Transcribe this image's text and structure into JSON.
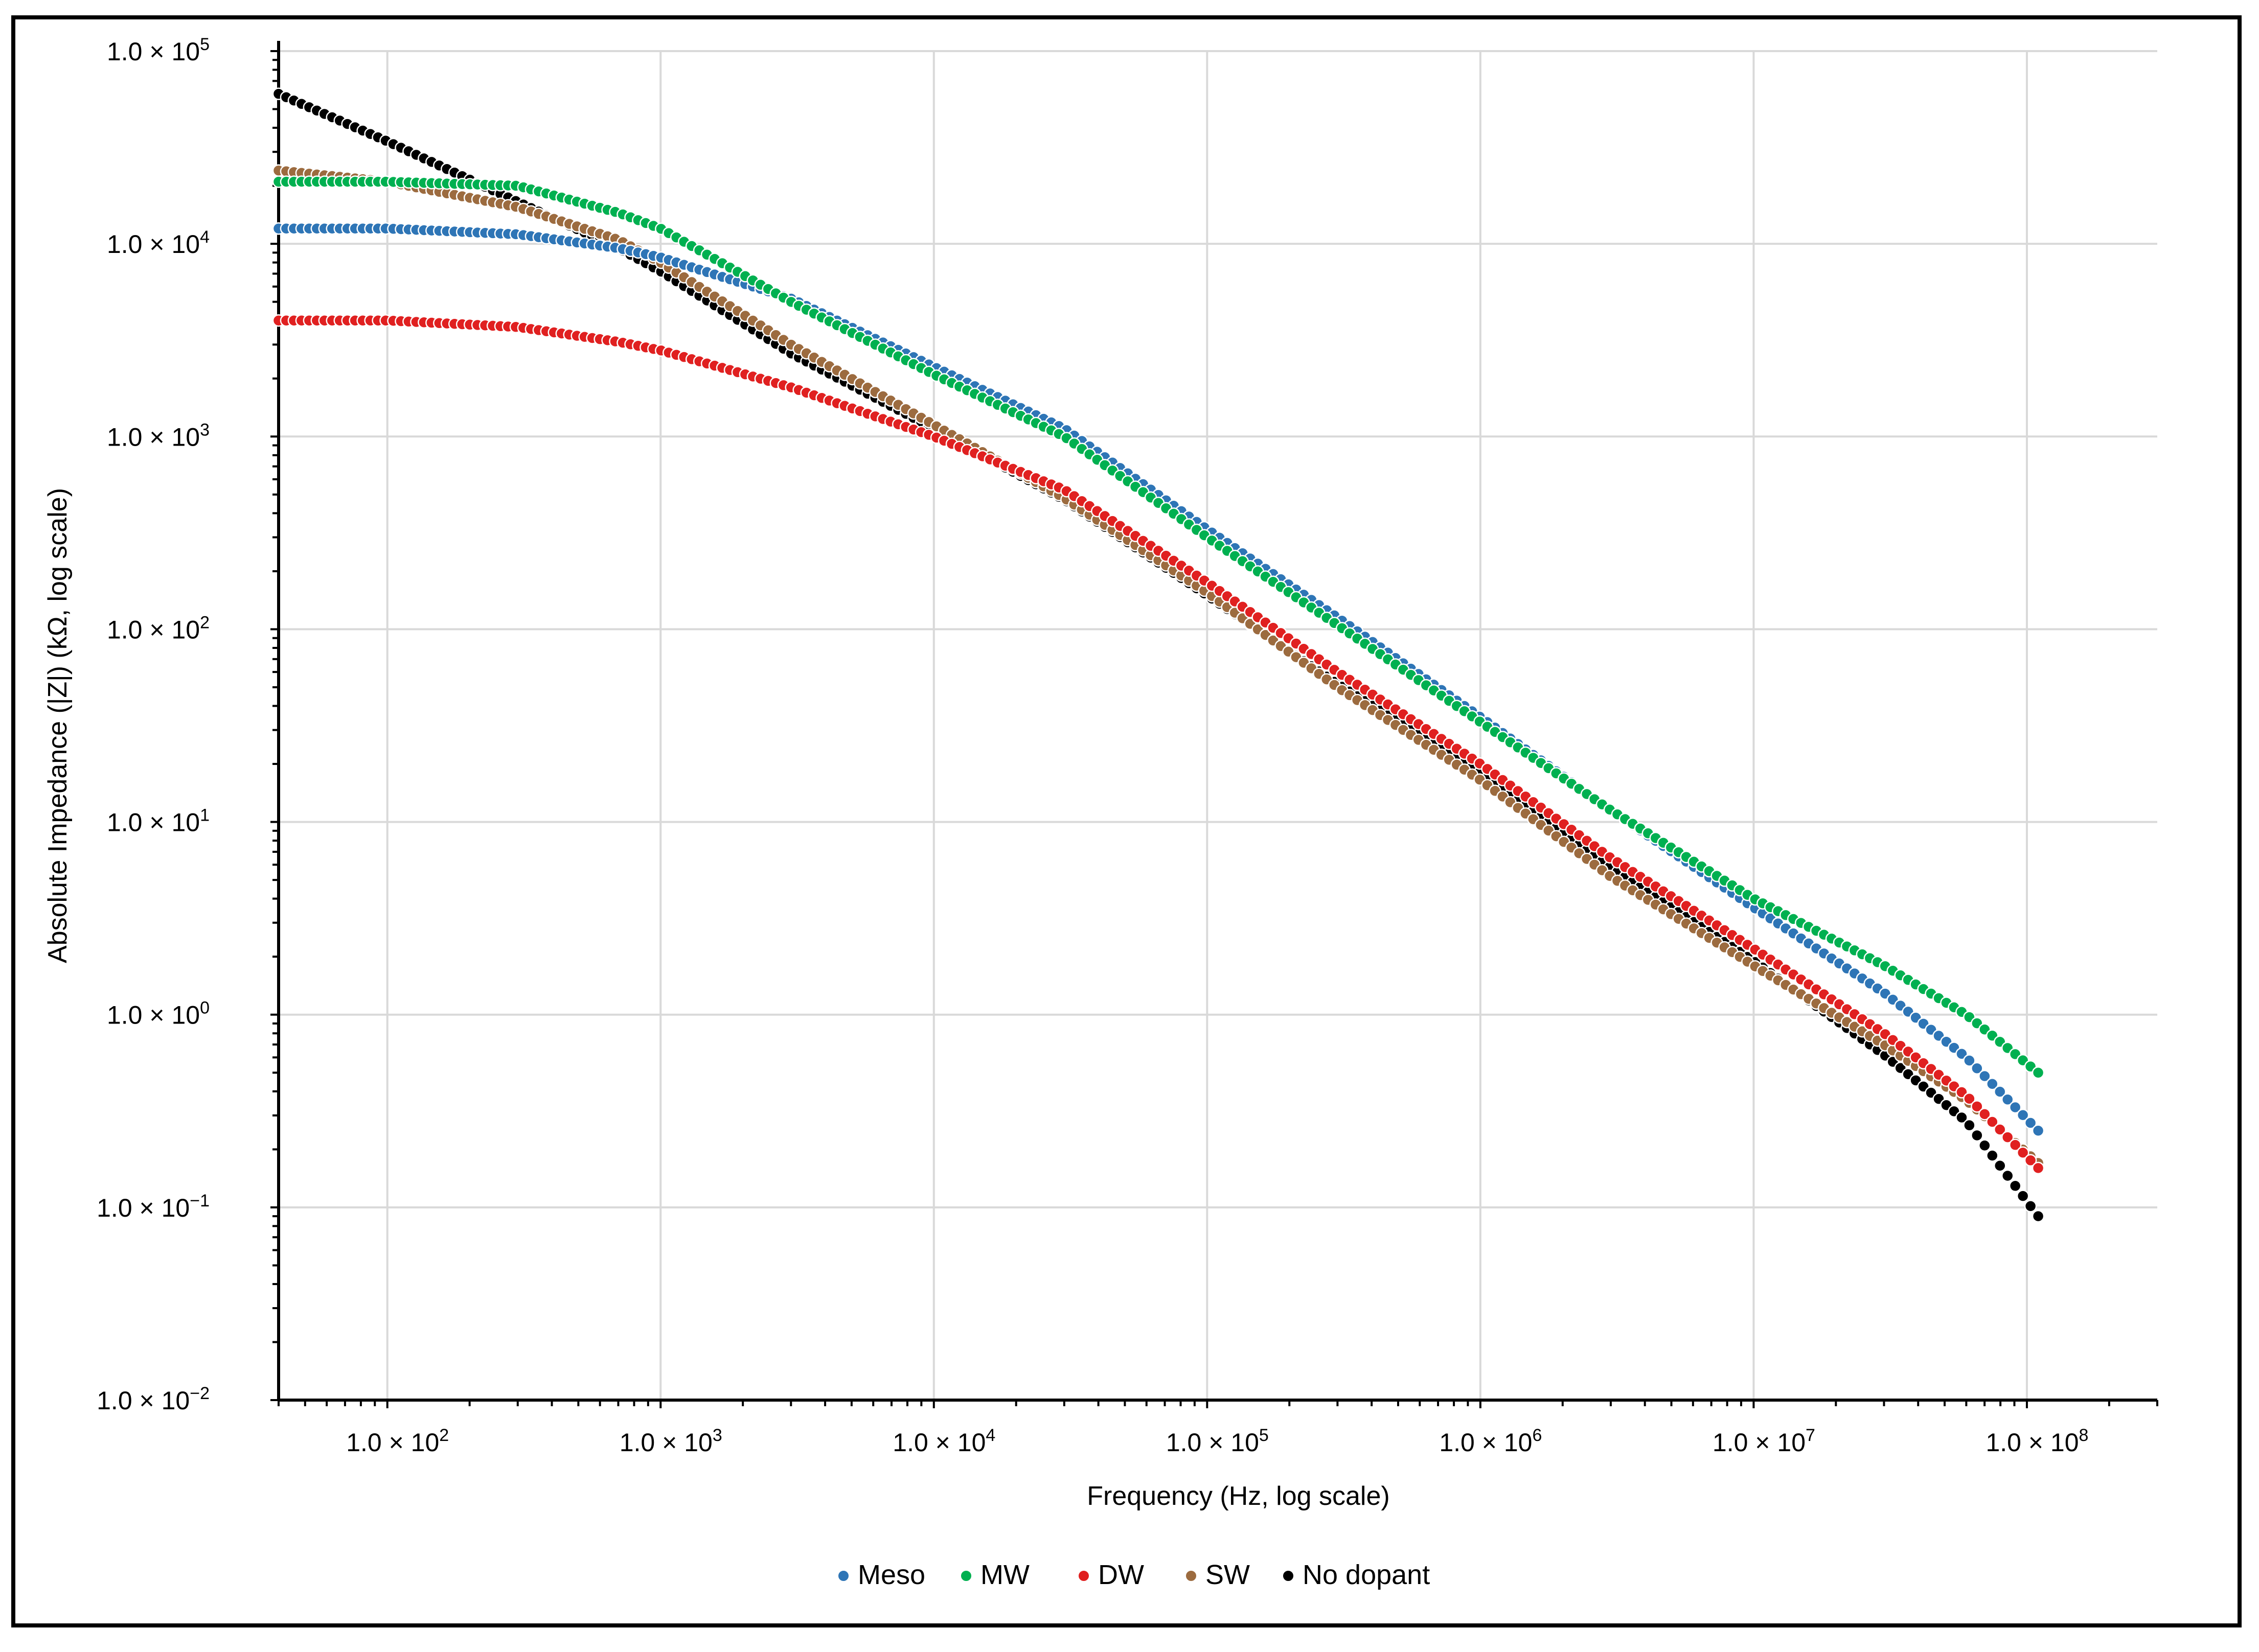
{
  "chart_data": {
    "type": "scatter",
    "xlabel": "Frequency (Hz, log scale)",
    "ylabel": "Absolute Impedance (|Z|) (kΩ, log scale)",
    "x_scale": "log",
    "y_scale": "log",
    "xlim": [
      40,
      300000000
    ],
    "ylim": [
      0.01,
      100000
    ],
    "grid": true,
    "legend_position": "bottom",
    "x_ticks": [
      {
        "value": 100,
        "mantissa": "1.0 × 10",
        "exp": "2"
      },
      {
        "value": 1000,
        "mantissa": "1.0 × 10",
        "exp": "3"
      },
      {
        "value": 10000,
        "mantissa": "1.0 × 10",
        "exp": "4"
      },
      {
        "value": 100000,
        "mantissa": "1.0 × 10",
        "exp": "5"
      },
      {
        "value": 1000000,
        "mantissa": "1.0 × 10",
        "exp": "6"
      },
      {
        "value": 10000000,
        "mantissa": "1.0 × 10",
        "exp": "7"
      },
      {
        "value": 100000000,
        "mantissa": "1.0 × 10",
        "exp": "8"
      }
    ],
    "y_ticks": [
      {
        "value": 100000,
        "mantissa": "1.0 × 10",
        "exp": "5"
      },
      {
        "value": 10000,
        "mantissa": "1.0 × 10",
        "exp": "4"
      },
      {
        "value": 1000,
        "mantissa": "1.0 × 10",
        "exp": "3"
      },
      {
        "value": 100,
        "mantissa": "1.0 × 10",
        "exp": "2"
      },
      {
        "value": 10,
        "mantissa": "1.0 × 10",
        "exp": "1"
      },
      {
        "value": 1,
        "mantissa": "1.0 × 10",
        "exp": "0"
      },
      {
        "value": 0.1,
        "mantissa": "1.0 × 10",
        "exp": "−1"
      },
      {
        "value": 0.01,
        "mantissa": "1.0 × 10",
        "exp": "−2"
      }
    ],
    "series": [
      {
        "name": "Meso",
        "color": "#2e75b6",
        "x": [
          40,
          100,
          300,
          700,
          1000,
          3000,
          10000,
          30000,
          100000,
          300000,
          1000000,
          3000000,
          10000000,
          30000000,
          60000000,
          110000000
        ],
        "y": [
          12000,
          12000,
          11200,
          9500,
          8500,
          5200,
          2300,
          1100,
          330,
          115,
          35,
          11.5,
          3.6,
          1.3,
          0.6,
          0.25
        ]
      },
      {
        "name": "MW",
        "color": "#00b050",
        "x": [
          40,
          100,
          300,
          700,
          1000,
          3000,
          10000,
          30000,
          100000,
          300000,
          1000000,
          3000000,
          10000000,
          30000000,
          60000000,
          110000000
        ],
        "y": [
          21000,
          21000,
          20000,
          14500,
          12000,
          5000,
          2100,
          1000,
          300,
          105,
          33,
          11.5,
          4,
          1.8,
          1.0,
          0.5
        ]
      },
      {
        "name": "DW",
        "color": "#e02020",
        "x": [
          40,
          100,
          300,
          700,
          1000,
          3000,
          10000,
          30000,
          100000,
          300000,
          1000000,
          3000000,
          10000000,
          30000000,
          60000000,
          110000000
        ],
        "y": [
          4000,
          4000,
          3700,
          3100,
          2800,
          1800,
          1000,
          530,
          175,
          60,
          20,
          6.5,
          2.2,
          0.8,
          0.38,
          0.16
        ]
      },
      {
        "name": "SW",
        "color": "#9c6b3f",
        "x": [
          40,
          100,
          300,
          700,
          1000,
          3000,
          10000,
          30000,
          100000,
          300000,
          1000000,
          3000000,
          10000000,
          30000000,
          60000000,
          110000000
        ],
        "y": [
          24000,
          21000,
          15500,
          10500,
          8000,
          3000,
          1150,
          480,
          155,
          50,
          16.5,
          5.2,
          1.8,
          0.7,
          0.36,
          0.17
        ]
      },
      {
        "name": "No dopant",
        "color": "#000000",
        "x": [
          40,
          100,
          300,
          700,
          1000,
          3000,
          10000,
          30000,
          100000,
          300000,
          1000000,
          3000000,
          10000000,
          30000000,
          60000000,
          110000000
        ],
        "y": [
          60000,
          34000,
          16500,
          9500,
          7200,
          2700,
          1100,
          470,
          150,
          52,
          18,
          5.8,
          1.9,
          0.62,
          0.28,
          0.09
        ]
      }
    ]
  }
}
